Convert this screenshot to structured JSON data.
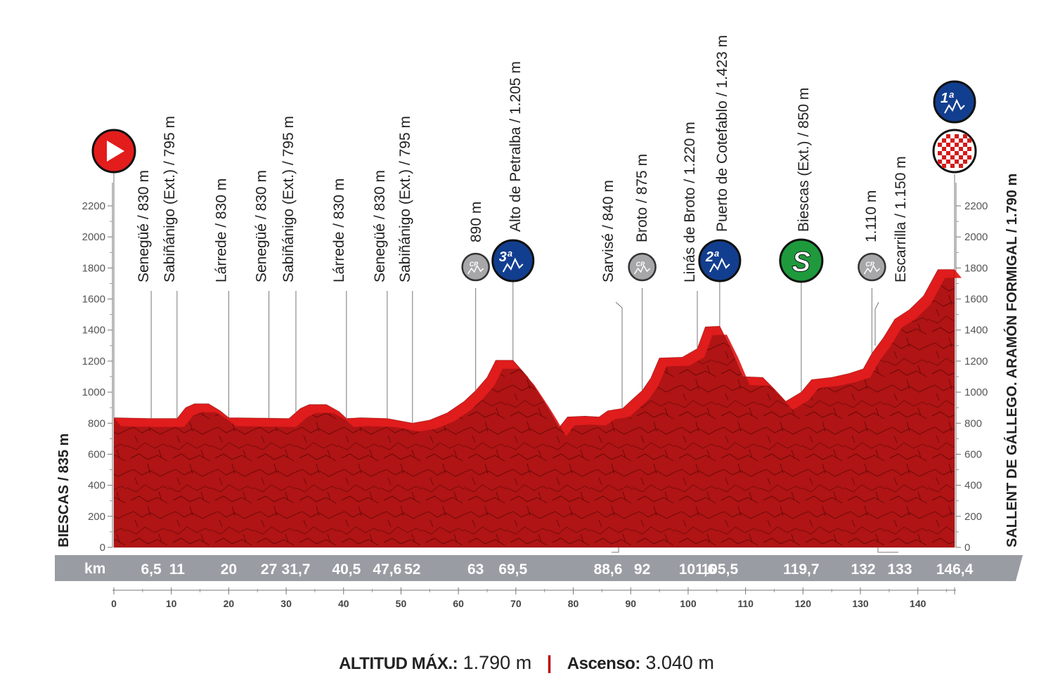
{
  "chart_data": {
    "type": "area",
    "title": "",
    "xlabel": "km",
    "ylabel": "",
    "xlim": [
      0,
      146.4
    ],
    "ylim": [
      0,
      2200
    ],
    "yticks": [
      0,
      200,
      400,
      600,
      800,
      1000,
      1200,
      1400,
      1600,
      1800,
      2000,
      2200
    ],
    "xticks": [
      0,
      10,
      20,
      30,
      40,
      50,
      60,
      70,
      80,
      90,
      100,
      110,
      120,
      130,
      140
    ],
    "grid": false,
    "colors": {
      "profile": "#b01414",
      "profile_top": "#e31c1c",
      "km_band": "#9a9ca3",
      "sprint": "#1e9a3c",
      "kom": "#123e8f",
      "start": "#e31c1c",
      "text_red": "#c00000"
    },
    "start_label": "BIESCAS / 835 m",
    "finish_label": "SALLENT DE GÁLLEGO. ARAMÓN FORMIGAL / 1.790 m",
    "km_title": "km",
    "profile": [
      {
        "x": 0,
        "y": 835
      },
      {
        "x": 6.5,
        "y": 830
      },
      {
        "x": 11,
        "y": 830
      },
      {
        "x": 12.5,
        "y": 900
      },
      {
        "x": 14,
        "y": 925
      },
      {
        "x": 16.5,
        "y": 925
      },
      {
        "x": 18.5,
        "y": 880
      },
      {
        "x": 20,
        "y": 835
      },
      {
        "x": 27,
        "y": 832
      },
      {
        "x": 30.5,
        "y": 830
      },
      {
        "x": 32.5,
        "y": 895
      },
      {
        "x": 34,
        "y": 920
      },
      {
        "x": 37,
        "y": 920
      },
      {
        "x": 39.2,
        "y": 875
      },
      {
        "x": 40.5,
        "y": 830
      },
      {
        "x": 43,
        "y": 835
      },
      {
        "x": 47.6,
        "y": 830
      },
      {
        "x": 52,
        "y": 800
      },
      {
        "x": 55,
        "y": 820
      },
      {
        "x": 58,
        "y": 865
      },
      {
        "x": 61,
        "y": 940
      },
      {
        "x": 63,
        "y": 1010
      },
      {
        "x": 65,
        "y": 1095
      },
      {
        "x": 66.5,
        "y": 1205
      },
      {
        "x": 69.5,
        "y": 1205
      },
      {
        "x": 72,
        "y": 1100
      },
      {
        "x": 74.5,
        "y": 960
      },
      {
        "x": 76,
        "y": 870
      },
      {
        "x": 77.5,
        "y": 770
      },
      {
        "x": 79,
        "y": 840
      },
      {
        "x": 82,
        "y": 845
      },
      {
        "x": 84.5,
        "y": 840
      },
      {
        "x": 86,
        "y": 880
      },
      {
        "x": 88.6,
        "y": 895
      },
      {
        "x": 90.5,
        "y": 960
      },
      {
        "x": 92,
        "y": 1010
      },
      {
        "x": 93.5,
        "y": 1090
      },
      {
        "x": 95,
        "y": 1220
      },
      {
        "x": 99,
        "y": 1225
      },
      {
        "x": 101.6,
        "y": 1280
      },
      {
        "x": 103,
        "y": 1420
      },
      {
        "x": 105.5,
        "y": 1425
      },
      {
        "x": 107.5,
        "y": 1275
      },
      {
        "x": 109.5,
        "y": 1100
      },
      {
        "x": 113,
        "y": 1095
      },
      {
        "x": 115,
        "y": 1020
      },
      {
        "x": 117,
        "y": 940
      },
      {
        "x": 119.7,
        "y": 1000
      },
      {
        "x": 121.5,
        "y": 1080
      },
      {
        "x": 125,
        "y": 1095
      },
      {
        "x": 128,
        "y": 1120
      },
      {
        "x": 130.5,
        "y": 1150
      },
      {
        "x": 132,
        "y": 1250
      },
      {
        "x": 134,
        "y": 1350
      },
      {
        "x": 136,
        "y": 1470
      },
      {
        "x": 138.5,
        "y": 1530
      },
      {
        "x": 141,
        "y": 1620
      },
      {
        "x": 143.5,
        "y": 1790
      },
      {
        "x": 146.4,
        "y": 1790
      }
    ],
    "waypoints": [
      {
        "km": "6,5",
        "x": 6.5,
        "label": "Senegüé / 830 m",
        "icon": ""
      },
      {
        "km": "11",
        "x": 11,
        "label": "Sabiñánigo (Ext.) / 795 m",
        "icon": ""
      },
      {
        "km": "20",
        "x": 20,
        "label": "Lárrede / 830 m",
        "icon": ""
      },
      {
        "km": "27",
        "x": 27,
        "label": "Senegüé / 830 m",
        "icon": ""
      },
      {
        "km": "31,7",
        "x": 31.7,
        "label": "Sabiñánigo (Ext.) / 795 m",
        "icon": ""
      },
      {
        "km": "40,5",
        "x": 40.5,
        "label": "Lárrede / 830 m",
        "icon": ""
      },
      {
        "km": "47,6",
        "x": 47.6,
        "label": "Senegüé / 830 m",
        "icon": ""
      },
      {
        "km": "52",
        "x": 52,
        "label": "Sabiñánigo (Ext.) / 795 m",
        "icon": ""
      },
      {
        "km": "63",
        "x": 63,
        "label": "890 m",
        "icon": "cp"
      },
      {
        "km": "69,5",
        "x": 69.5,
        "label": "Alto de Petralba / 1.205 m",
        "icon": "kom3"
      },
      {
        "km": "88,6",
        "x": 88.6,
        "label": "Sarvisé / 840 m",
        "icon": ""
      },
      {
        "km": "92",
        "x": 92,
        "label": "Broto / 875 m",
        "icon": "cp"
      },
      {
        "km": "101,6",
        "x": 101.6,
        "label": "Linás de Broto / 1.220 m",
        "icon": ""
      },
      {
        "km": "105,5",
        "x": 105.5,
        "label": "Puerto de Cotefablo / 1.423 m",
        "icon": "kom2"
      },
      {
        "km": "119,7",
        "x": 119.7,
        "label": "Biescas (Ext.) / 850 m",
        "icon": "sprint"
      },
      {
        "km": "132",
        "x": 132,
        "label": "1.110 m",
        "icon": "cp"
      },
      {
        "km": "133",
        "x": 133,
        "label": "Escarrilla / 1.150 m",
        "icon": ""
      },
      {
        "km": "146,4",
        "x": 146.4,
        "label": "",
        "icon": "kom1-finish"
      }
    ],
    "icons": {
      "cp_text": "CP",
      "kom3_text": "3ª",
      "kom2_text": "2ª",
      "kom1_text": "1ª",
      "sprint_text": "S"
    }
  },
  "footer": {
    "max_alt_label": "ALTITUD MÁX.:",
    "max_alt_value": "1.790 m",
    "separator": "|",
    "ascent_label": "Ascenso:",
    "ascent_value": "3.040 m"
  }
}
